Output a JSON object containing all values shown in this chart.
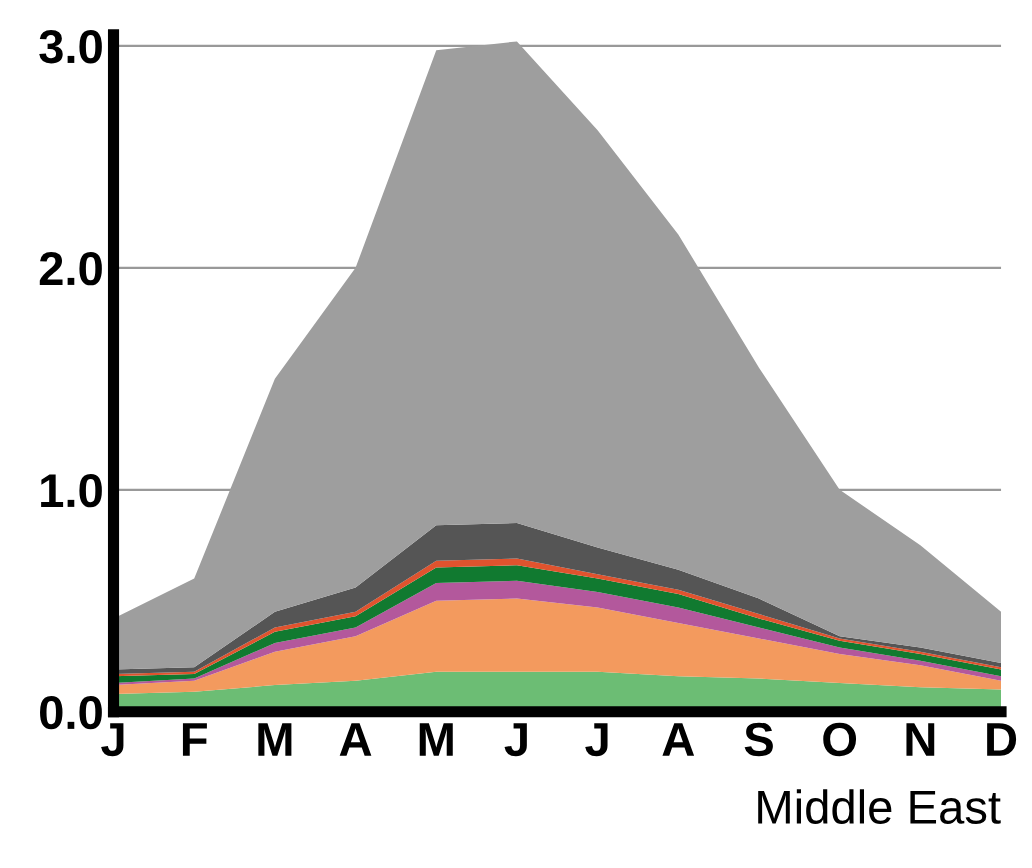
{
  "chart_data": {
    "type": "area",
    "stacked": true,
    "categories": [
      "J",
      "F",
      "M",
      "A",
      "M",
      "J",
      "J",
      "A",
      "S",
      "O",
      "N",
      "D"
    ],
    "series": [
      {
        "color": "#6cbd74",
        "values": [
          0.08,
          0.09,
          0.12,
          0.14,
          0.18,
          0.18,
          0.18,
          0.16,
          0.15,
          0.13,
          0.11,
          0.1
        ]
      },
      {
        "color": "#f39a5e",
        "values": [
          0.04,
          0.05,
          0.15,
          0.2,
          0.32,
          0.33,
          0.29,
          0.24,
          0.18,
          0.13,
          0.1,
          0.04
        ]
      },
      {
        "color": "#b3589c",
        "values": [
          0.01,
          0.01,
          0.04,
          0.04,
          0.08,
          0.08,
          0.07,
          0.07,
          0.05,
          0.03,
          0.02,
          0.02
        ]
      },
      {
        "color": "#117a30",
        "values": [
          0.03,
          0.02,
          0.05,
          0.05,
          0.07,
          0.07,
          0.06,
          0.06,
          0.04,
          0.03,
          0.03,
          0.03
        ]
      },
      {
        "color": "#e0532e",
        "values": [
          0.01,
          0.01,
          0.02,
          0.02,
          0.03,
          0.03,
          0.02,
          0.02,
          0.02,
          0.01,
          0.01,
          0.01
        ]
      },
      {
        "color": "#555555",
        "values": [
          0.02,
          0.02,
          0.07,
          0.11,
          0.16,
          0.16,
          0.12,
          0.09,
          0.07,
          0.01,
          0.02,
          0.02
        ]
      },
      {
        "color": "#9e9e9e",
        "values": [
          0.23,
          0.4,
          1.05,
          1.44,
          2.14,
          2.17,
          1.88,
          1.51,
          1.04,
          0.66,
          0.46,
          0.23
        ]
      }
    ],
    "ylim": [
      0,
      3.05
    ],
    "yticks": [
      {
        "value": 0,
        "label": "0.0"
      },
      {
        "value": 1,
        "label": "1.0"
      },
      {
        "value": 2,
        "label": "2.0"
      },
      {
        "value": 3,
        "label": "3.0"
      }
    ],
    "grid": "y",
    "legend": false,
    "annotations": [
      "Middle East"
    ]
  }
}
